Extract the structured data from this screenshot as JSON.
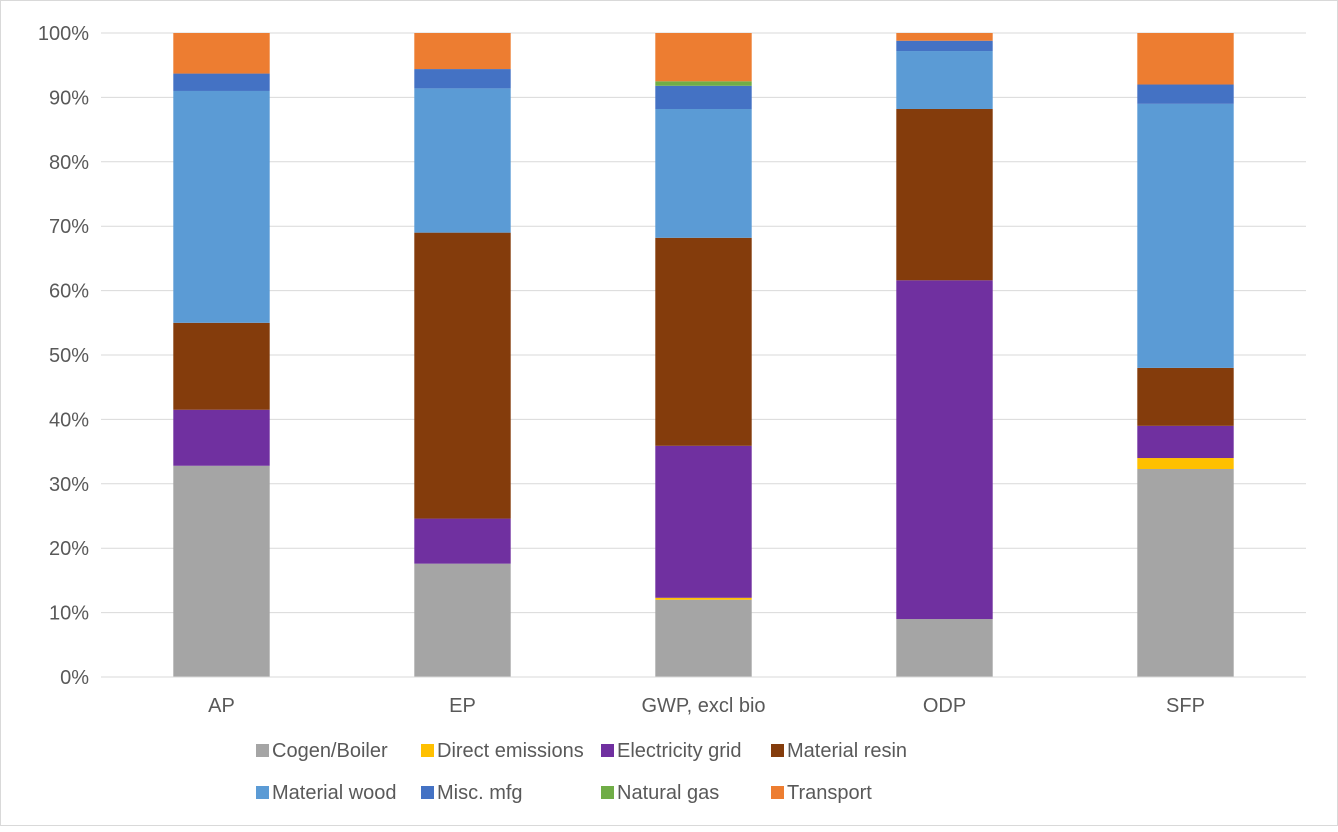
{
  "chart_data": {
    "type": "bar",
    "stacked": true,
    "percent": true,
    "title": "",
    "xlabel": "",
    "ylabel": "",
    "ylim": [
      0,
      100
    ],
    "yticks": [
      "0%",
      "10%",
      "20%",
      "30%",
      "40%",
      "50%",
      "60%",
      "70%",
      "80%",
      "90%",
      "100%"
    ],
    "grid": true,
    "legend_position": "bottom",
    "categories": [
      "AP",
      "EP",
      "GWP, excl bio",
      "ODP",
      "SFP"
    ],
    "series": [
      {
        "name": "Cogen/Boiler",
        "color": "#a5a5a5",
        "values": [
          32.8,
          17.6,
          12.0,
          9.0,
          32.3
        ]
      },
      {
        "name": "Direct emissions",
        "color": "#ffc000",
        "values": [
          0.0,
          0.0,
          0.3,
          0.0,
          1.7
        ]
      },
      {
        "name": "Electricity grid",
        "color": "#7030a0",
        "values": [
          8.7,
          7.0,
          23.6,
          52.6,
          5.0
        ]
      },
      {
        "name": "Material resin",
        "color": "#843c0c",
        "values": [
          13.5,
          44.4,
          32.3,
          26.6,
          9.0
        ]
      },
      {
        "name": "Material wood",
        "color": "#5b9bd5",
        "values": [
          36.0,
          22.4,
          20.0,
          9.0,
          41.0
        ]
      },
      {
        "name": "Misc. mfg",
        "color": "#4472c4",
        "values": [
          2.7,
          3.0,
          3.6,
          1.6,
          3.0
        ]
      },
      {
        "name": "Natural gas",
        "color": "#70ad47",
        "values": [
          0.0,
          0.0,
          0.7,
          0.0,
          0.0
        ]
      },
      {
        "name": "Transport",
        "color": "#ed7d31",
        "values": [
          6.3,
          5.6,
          7.5,
          1.2,
          8.0
        ]
      }
    ]
  }
}
